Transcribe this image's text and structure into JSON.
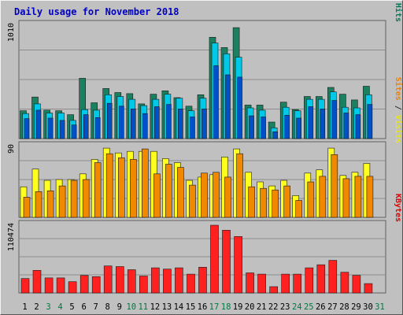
{
  "chart_data": [
    {
      "type": "bar",
      "title": "Daily usage for November 2018",
      "ymax_label": "1010",
      "ylabel_parts": [
        {
          "text": "Pages",
          "color": "#00c8e8"
        },
        {
          "text": " / ",
          "color": "#303030"
        },
        {
          "text": "Files",
          "color": "#0070e0"
        },
        {
          "text": " / ",
          "color": "#303030"
        },
        {
          "text": "Hits",
          "color": "#007a5a"
        }
      ],
      "ylim": [
        0,
        1010
      ],
      "categories": [
        "1",
        "2",
        "3",
        "4",
        "5",
        "6",
        "7",
        "8",
        "9",
        "10",
        "11",
        "12",
        "13",
        "14",
        "15",
        "16",
        "17",
        "18",
        "19",
        "20",
        "21",
        "22",
        "23",
        "24",
        "25",
        "26",
        "27",
        "28",
        "29",
        "30",
        "31"
      ],
      "weekend_days": [
        "3",
        "4",
        "10",
        "11",
        "17",
        "18",
        "24",
        "25",
        "31"
      ],
      "series": [
        {
          "name": "Hits",
          "color": "#1a8060",
          "values": [
            245,
            365,
            250,
            245,
            210,
            530,
            315,
            440,
            405,
            395,
            305,
            390,
            420,
            360,
            285,
            385,
            890,
            800,
            975,
            295,
            295,
            145,
            320,
            255,
            370,
            370,
            450,
            390,
            340,
            460,
            0
          ]
        },
        {
          "name": "Files",
          "color": "#00c8e8",
          "values": [
            220,
            305,
            225,
            225,
            160,
            255,
            250,
            385,
            370,
            345,
            290,
            345,
            390,
            355,
            245,
            355,
            840,
            745,
            715,
            270,
            250,
            95,
            275,
            245,
            345,
            345,
            410,
            275,
            270,
            385,
            0
          ]
        },
        {
          "name": "Pages",
          "color": "#0050c8",
          "values": [
            175,
            250,
            180,
            160,
            120,
            210,
            185,
            310,
            285,
            260,
            220,
            280,
            300,
            260,
            190,
            260,
            640,
            560,
            540,
            200,
            190,
            60,
            205,
            180,
            280,
            260,
            335,
            225,
            210,
            300,
            0
          ]
        }
      ]
    },
    {
      "type": "bar",
      "ymax_label": "90",
      "ylabel_parts": [
        {
          "text": "Sites",
          "color": "#f08000"
        },
        {
          "text": " / ",
          "color": "#303030"
        },
        {
          "text": "Visits",
          "color": "#e8e800"
        }
      ],
      "ylim": [
        0,
        90
      ],
      "series": [
        {
          "name": "Visits",
          "color": "#ffff20",
          "values": [
            38,
            60,
            46,
            47,
            47,
            54,
            72,
            86,
            80,
            82,
            82,
            82,
            73,
            68,
            46,
            50,
            53,
            75,
            85,
            56,
            44,
            39,
            46,
            27,
            55,
            59,
            86,
            52,
            56,
            67,
            0
          ]
        },
        {
          "name": "Sites",
          "color": "#f08800",
          "values": [
            25,
            32,
            33,
            39,
            46,
            47,
            68,
            79,
            74,
            72,
            85,
            54,
            66,
            62,
            40,
            55,
            56,
            50,
            79,
            38,
            36,
            34,
            39,
            21,
            44,
            51,
            78,
            48,
            51,
            51,
            0
          ]
        }
      ]
    },
    {
      "type": "bar",
      "ymax_label": "110474",
      "ylabel_parts": [
        {
          "text": "KBytes",
          "color": "#e00000"
        }
      ],
      "ylim": [
        0,
        110474
      ],
      "series": [
        {
          "name": "KBytes",
          "color": "#ff2020",
          "values": [
            23000,
            36000,
            24000,
            24000,
            18000,
            28000,
            26000,
            43000,
            42000,
            37000,
            27000,
            40000,
            38000,
            40000,
            30000,
            41000,
            108000,
            100000,
            90000,
            32000,
            30000,
            10000,
            30000,
            30000,
            40000,
            45000,
            52000,
            33000,
            28000,
            15000,
            0
          ]
        }
      ]
    }
  ]
}
